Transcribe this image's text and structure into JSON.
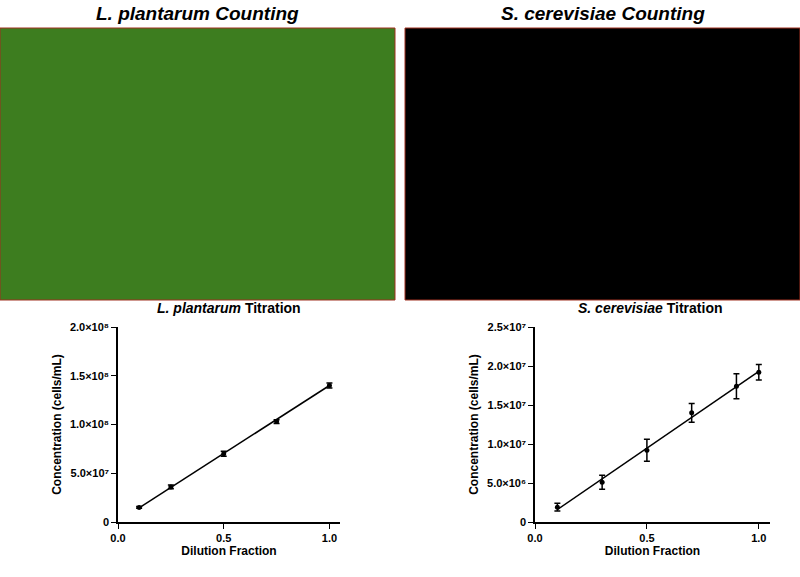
{
  "images": [
    {
      "title": "L. plantarum Counting",
      "color": "#3d7d1f"
    },
    {
      "title": "S. cerevisiae Counting",
      "color": "#000000"
    }
  ],
  "chart_data": [
    {
      "type": "scatter",
      "title": "L. plantarum Titration",
      "x_label": "Dilution Fraction",
      "y_label": "Concentration (cells/mL)",
      "xlim": [
        0,
        1.05
      ],
      "xticks": [
        {
          "value": 0,
          "label": "0.0"
        },
        {
          "value": 0.5,
          "label": "0.5"
        },
        {
          "value": 1,
          "label": "1.0"
        }
      ],
      "ylim": [
        0,
        200000000
      ],
      "yticks": [
        0,
        {
          "value": 50000000,
          "label": "5.0×10⁷"
        },
        {
          "value": 100000000,
          "label": "1.0×10⁸"
        },
        {
          "value": 150000000,
          "label": "1.5×10⁸"
        },
        {
          "value": 200000000,
          "label": "2.0×10⁸"
        }
      ],
      "grid": false,
      "series": [
        {
          "type": "scatter",
          "marker": "circle",
          "color": "#000000",
          "x": [
            0.1,
            0.25,
            0.5,
            0.75,
            1.0
          ],
          "values": [
            15000000,
            36000000,
            70000000,
            103000000,
            140000000
          ],
          "error": [
            1000000,
            2000000,
            2500000,
            2000000,
            2500000
          ]
        },
        {
          "type": "line",
          "line_style": "solid",
          "color": "#000000",
          "x": [
            0.1,
            1.0
          ],
          "values": [
            14500000,
            140000000
          ]
        }
      ]
    },
    {
      "type": "scatter",
      "title": "S. cerevisiae Titration",
      "x_label": "Dilution Fraction",
      "y_label": "Concentration (cells/mL)",
      "xlim": [
        0,
        1.05
      ],
      "xticks": [
        {
          "value": 0,
          "label": "0.0"
        },
        {
          "value": 0.5,
          "label": "0.5"
        },
        {
          "value": 1,
          "label": "1.0"
        }
      ],
      "ylim": [
        0,
        25000000
      ],
      "yticks": [
        0,
        {
          "value": 5000000,
          "label": "5.0×10⁶"
        },
        {
          "value": 10000000,
          "label": "1.0×10⁷"
        },
        {
          "value": 15000000,
          "label": "1.5×10⁷"
        },
        {
          "value": 20000000,
          "label": "2.0×10⁷"
        },
        {
          "value": 25000000,
          "label": "2.5×10⁷"
        }
      ],
      "grid": false,
      "series": [
        {
          "type": "scatter",
          "marker": "circle",
          "color": "#000000",
          "x": [
            0.1,
            0.3,
            0.5,
            0.7,
            0.9,
            1.0
          ],
          "values": [
            1900000,
            5100000,
            9200000,
            14000000,
            17400000,
            19200000
          ],
          "error": [
            500000,
            900000,
            1400000,
            1200000,
            1600000,
            1000000
          ]
        },
        {
          "type": "line",
          "line_style": "solid",
          "color": "#000000",
          "x": [
            0.1,
            1.0
          ],
          "values": [
            1600000,
            19300000
          ]
        }
      ]
    }
  ]
}
